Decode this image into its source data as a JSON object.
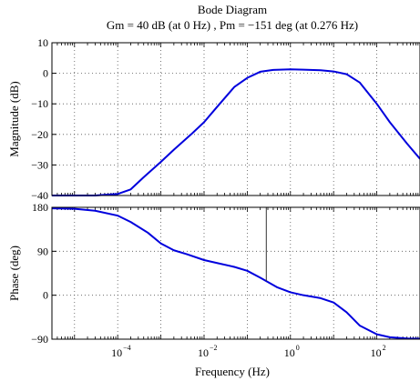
{
  "chart_data": [
    {
      "type": "line",
      "panel": "magnitude",
      "title": "Bode Diagram",
      "subtitle": "Gm = 40 dB (at 0 Hz) ,  Pm = −151 deg (at 0.276 Hz)",
      "xlabel": "",
      "ylabel": "Magnitude (dB)",
      "xscale": "log",
      "xlim": [
        3e-06,
        1000
      ],
      "ylim": [
        -40,
        10
      ],
      "yticks": [
        -40,
        -30,
        -20,
        -10,
        0,
        10
      ],
      "ytick_labels": [
        "−40",
        "−30",
        "−20",
        "−10",
        "0",
        "10"
      ],
      "grid": true,
      "series": [
        {
          "color": "#0000dd",
          "x": [
            3e-06,
            1e-05,
            3e-05,
            0.0001,
            0.0002,
            0.0004,
            0.001,
            0.002,
            0.005,
            0.01,
            0.02,
            0.05,
            0.1,
            0.2,
            0.4,
            1,
            2,
            5,
            10,
            20,
            40,
            100,
            200,
            500,
            1000
          ],
          "y": [
            -40,
            -40,
            -40,
            -39.5,
            -38,
            -34,
            -29,
            -25,
            -20,
            -16,
            -11,
            -4.5,
            -1.5,
            0.5,
            1.1,
            1.3,
            1.2,
            1,
            0.6,
            -0.3,
            -3,
            -10,
            -16,
            -23,
            -28
          ]
        }
      ]
    },
    {
      "type": "line",
      "panel": "phase",
      "xlabel": "Frequency  (Hz)",
      "ylabel": "Phase (deg)",
      "xscale": "log",
      "xlim": [
        3e-06,
        1000
      ],
      "ylim": [
        -90,
        180
      ],
      "yticks": [
        -90,
        0,
        90,
        180
      ],
      "ytick_labels": [
        "−90",
        "0",
        "90",
        "180"
      ],
      "xticks": [
        0.0001,
        0.01,
        1,
        100
      ],
      "xtick_labels": [
        {
          "base": "10",
          "exp": "−4"
        },
        {
          "base": "10",
          "exp": "−2"
        },
        {
          "base": "10",
          "exp": "0"
        },
        {
          "base": "10",
          "exp": "2"
        }
      ],
      "grid": true,
      "margin_marker": {
        "x": 0.276,
        "from": 180,
        "to": 29
      },
      "series": [
        {
          "color": "#0000dd",
          "x": [
            3e-06,
            1e-05,
            3e-05,
            0.0001,
            0.0002,
            0.0005,
            0.001,
            0.002,
            0.004,
            0.01,
            0.02,
            0.05,
            0.1,
            0.2,
            0.5,
            1,
            2,
            5,
            10,
            20,
            40,
            100,
            200,
            500,
            1000
          ],
          "y": [
            178,
            177,
            173,
            163,
            150,
            128,
            106,
            92,
            84,
            72,
            66,
            58,
            50,
            36,
            16,
            6,
            0,
            -6,
            -15,
            -35,
            -62,
            -80,
            -86,
            -88.5,
            -89
          ]
        }
      ]
    }
  ]
}
